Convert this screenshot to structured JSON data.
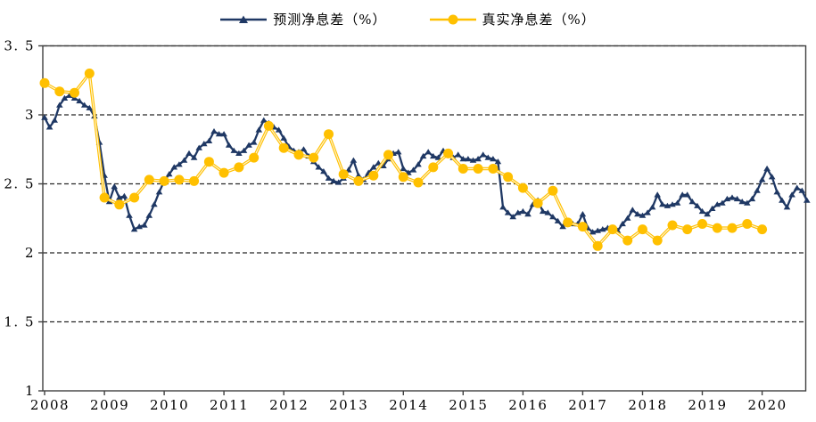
{
  "colors": {
    "background": "#FFFFFF",
    "frame": "#404040",
    "gridline": "#262626",
    "text": "#000000",
    "predicted_blue": "#1F3864",
    "actual_gold": "#FFC000",
    "gold_line_inner": "#FFF3D0"
  },
  "chart_data": {
    "type": "line",
    "title": "",
    "grid": "horizontal-dashed",
    "legend_position": "top-center",
    "x_axis": {
      "min": 2007.97,
      "max": 2020.73,
      "tick_years": [
        2008,
        2009,
        2010,
        2011,
        2012,
        2013,
        2014,
        2015,
        2016,
        2017,
        2018,
        2019,
        2020
      ],
      "tick_labels": [
        "2008",
        "2009",
        "2010",
        "2011",
        "2012",
        "2013",
        "2014",
        "2015",
        "2016",
        "2017",
        "2018",
        "2019",
        "2020"
      ]
    },
    "y_axis": {
      "min": 1,
      "max": 3.5,
      "ticks": [
        3.5,
        3,
        2.5,
        2,
        1.5,
        1
      ],
      "tick_labels": [
        "3. 5",
        "3",
        "2. 5",
        "2",
        "1. 5",
        "1"
      ],
      "gridlines": [
        3.5,
        3,
        2.5,
        2,
        1.5
      ]
    },
    "series": [
      {
        "name": "预测净息差（%）",
        "color": "#1F3864",
        "marker": "triangle",
        "frequency": "monthly",
        "x_start": 2008.0,
        "x_step": 0.0833333,
        "values": [
          2.98,
          2.91,
          2.96,
          3.07,
          3.12,
          3.14,
          3.12,
          3.1,
          3.07,
          3.05,
          2.99,
          2.8,
          2.56,
          2.37,
          2.48,
          2.4,
          2.41,
          2.27,
          2.17,
          2.19,
          2.2,
          2.27,
          2.35,
          2.44,
          2.52,
          2.57,
          2.62,
          2.64,
          2.67,
          2.72,
          2.69,
          2.76,
          2.79,
          2.81,
          2.88,
          2.86,
          2.86,
          2.78,
          2.74,
          2.72,
          2.74,
          2.78,
          2.8,
          2.89,
          2.96,
          2.94,
          2.91,
          2.89,
          2.83,
          2.77,
          2.74,
          2.73,
          2.75,
          2.7,
          2.66,
          2.62,
          2.59,
          2.54,
          2.52,
          2.51,
          2.54,
          2.6,
          2.67,
          2.56,
          2.53,
          2.58,
          2.62,
          2.65,
          2.63,
          2.68,
          2.72,
          2.73,
          2.61,
          2.58,
          2.6,
          2.64,
          2.7,
          2.73,
          2.7,
          2.69,
          2.74,
          2.73,
          2.69,
          2.71,
          2.68,
          2.68,
          2.67,
          2.68,
          2.71,
          2.69,
          2.68,
          2.66,
          2.33,
          2.29,
          2.26,
          2.29,
          2.3,
          2.28,
          2.35,
          2.38,
          2.3,
          2.29,
          2.26,
          2.23,
          2.19,
          2.22,
          2.21,
          2.21,
          2.28,
          2.18,
          2.15,
          2.16,
          2.17,
          2.18,
          2.17,
          2.16,
          2.21,
          2.25,
          2.31,
          2.28,
          2.27,
          2.29,
          2.33,
          2.42,
          2.35,
          2.34,
          2.35,
          2.36,
          2.42,
          2.42,
          2.37,
          2.34,
          2.3,
          2.28,
          2.32,
          2.35,
          2.36,
          2.39,
          2.4,
          2.39,
          2.37,
          2.36,
          2.39,
          2.45,
          2.53,
          2.61,
          2.55,
          2.44,
          2.38,
          2.33,
          2.42,
          2.47,
          2.45,
          2.38
        ]
      },
      {
        "name": "真实净息差（%）",
        "color": "#FFC000",
        "marker": "circle",
        "frequency": "quarterly",
        "x_start": 2008.0,
        "x_step": 0.25,
        "values": [
          3.23,
          3.17,
          3.16,
          3.3,
          2.4,
          2.35,
          2.4,
          2.53,
          2.52,
          2.53,
          2.52,
          2.66,
          2.58,
          2.62,
          2.69,
          2.92,
          2.76,
          2.71,
          2.69,
          2.86,
          2.57,
          2.52,
          2.56,
          2.71,
          2.55,
          2.51,
          2.62,
          2.72,
          2.61,
          2.61,
          2.61,
          2.55,
          2.47,
          2.36,
          2.45,
          2.22,
          2.19,
          2.05,
          2.17,
          2.09,
          2.17,
          2.09,
          2.2,
          2.17,
          2.21,
          2.18,
          2.18,
          2.21,
          2.17
        ]
      }
    ]
  }
}
